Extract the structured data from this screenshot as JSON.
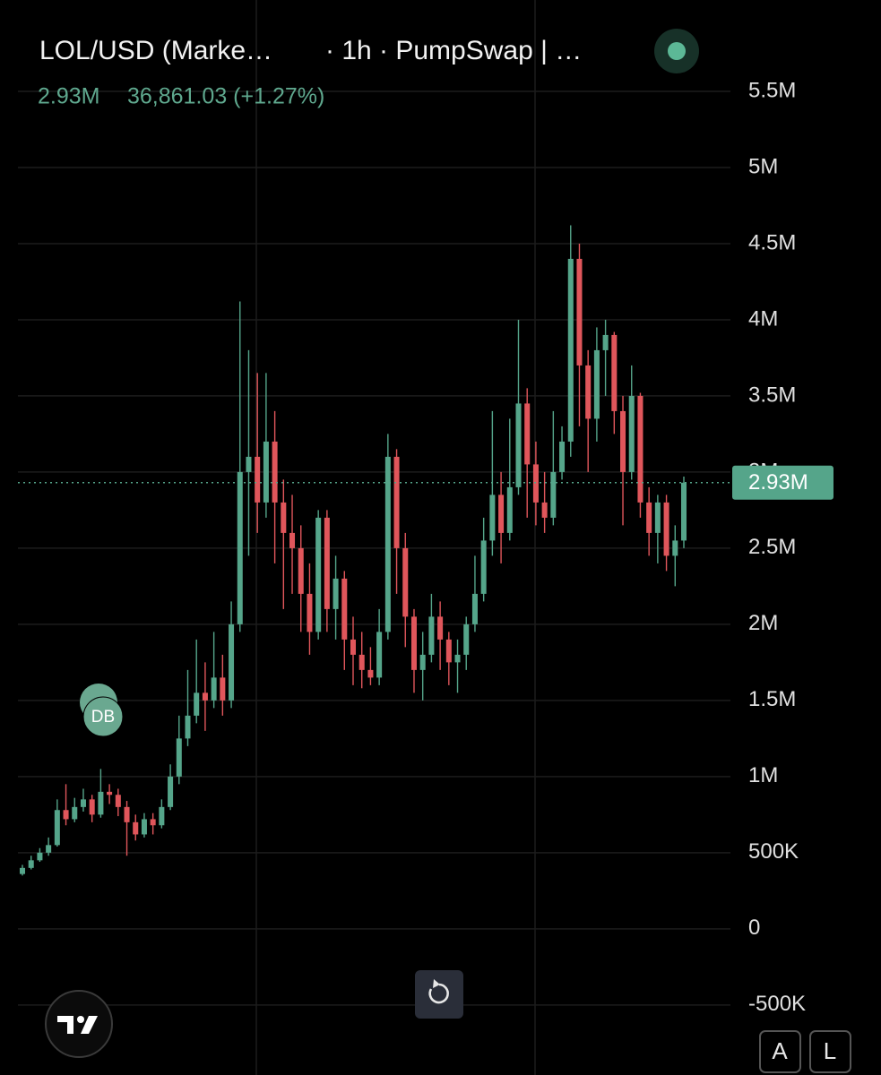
{
  "header": {
    "title": "LOL/USD (Marke…",
    "meta": "· 1h · PumpSwap | …",
    "last_value": "2.93M",
    "change": "36,861.03 (+1.27%)"
  },
  "marker": "DB",
  "controls": {
    "auto": "A",
    "log": "L"
  },
  "chart_data": {
    "type": "candlestick",
    "up_color": "#55a58a",
    "down_color": "#e0565b",
    "grid": true,
    "ylim": [
      -960000,
      6100000
    ],
    "yticks": [
      {
        "value": 5500000,
        "label": "5.5M"
      },
      {
        "value": 5000000,
        "label": "5M"
      },
      {
        "value": 4500000,
        "label": "4.5M"
      },
      {
        "value": 4000000,
        "label": "4M"
      },
      {
        "value": 3500000,
        "label": "3.5M"
      },
      {
        "value": 3000000,
        "label": "3M"
      },
      {
        "value": 2500000,
        "label": "2.5M"
      },
      {
        "value": 2000000,
        "label": "2M"
      },
      {
        "value": 1500000,
        "label": "1.5M"
      },
      {
        "value": 1000000,
        "label": "1M"
      },
      {
        "value": 500000,
        "label": "500K"
      },
      0,
      {
        "value": -500000,
        "label": "-500K"
      }
    ],
    "last_price": {
      "value": 2930000,
      "label": "2.93M"
    },
    "open": [
      360000,
      400000,
      450000,
      500000,
      550000,
      780000,
      720000,
      800000,
      850000,
      750000,
      900000,
      880000,
      800000,
      700000,
      620000,
      720000,
      680000,
      800000,
      1000000,
      1250000,
      1400000,
      1550000,
      1500000,
      1650000,
      1500000,
      2000000,
      3000000,
      3100000,
      2800000,
      3200000,
      2800000,
      2600000,
      2500000,
      2200000,
      1950000,
      2700000,
      2100000,
      2300000,
      1900000,
      1800000,
      1700000,
      1650000,
      1950000,
      3100000,
      2500000,
      2050000,
      1700000,
      1800000,
      2050000,
      1900000,
      1750000,
      1800000,
      2000000,
      2200000,
      2550000,
      2850000,
      2600000,
      2900000,
      3450000,
      3050000,
      2800000,
      2700000,
      3000000,
      3200000,
      4400000,
      3700000,
      3350000,
      3800000,
      3900000,
      3400000,
      3000000,
      3500000,
      2800000,
      2600000,
      2800000,
      2450000,
      2550000
    ],
    "high": [
      420000,
      480000,
      530000,
      600000,
      850000,
      950000,
      860000,
      920000,
      880000,
      1050000,
      950000,
      920000,
      840000,
      750000,
      760000,
      760000,
      850000,
      1080000,
      1400000,
      1700000,
      1900000,
      1750000,
      1950000,
      1800000,
      2150000,
      4120000,
      3800000,
      3650000,
      3650000,
      3400000,
      2950000,
      2850000,
      2650000,
      2400000,
      2750000,
      2750000,
      2450000,
      2350000,
      2050000,
      1950000,
      1850000,
      2100000,
      3250000,
      3150000,
      2600000,
      2100000,
      1950000,
      2200000,
      2150000,
      1950000,
      1900000,
      2050000,
      2450000,
      2700000,
      3400000,
      3000000,
      3350000,
      4000000,
      3550000,
      3200000,
      3000000,
      3400000,
      3300000,
      4620000,
      4500000,
      3800000,
      3950000,
      4000000,
      3920000,
      3500000,
      3700000,
      3520000,
      2900000,
      2850000,
      2850000,
      2650000,
      2970000
    ],
    "low": [
      350000,
      390000,
      440000,
      480000,
      540000,
      680000,
      700000,
      770000,
      700000,
      730000,
      820000,
      740000,
      480000,
      580000,
      600000,
      620000,
      660000,
      780000,
      950000,
      1200000,
      1350000,
      1300000,
      1450000,
      1400000,
      1450000,
      1950000,
      2450000,
      2600000,
      2700000,
      2400000,
      2100000,
      2200000,
      1950000,
      1800000,
      1900000,
      1950000,
      1900000,
      1700000,
      1600000,
      1580000,
      1600000,
      1600000,
      1900000,
      2200000,
      1850000,
      1550000,
      1500000,
      1750000,
      1700000,
      1600000,
      1550000,
      1700000,
      1950000,
      2150000,
      2450000,
      2400000,
      2550000,
      2850000,
      2700000,
      2650000,
      2600000,
      2650000,
      2950000,
      3100000,
      3300000,
      3000000,
      3200000,
      3500000,
      3250000,
      2650000,
      2950000,
      2700000,
      2450000,
      2400000,
      2350000,
      2250000,
      2500000
    ],
    "close": [
      400000,
      450000,
      500000,
      550000,
      780000,
      720000,
      800000,
      850000,
      750000,
      900000,
      880000,
      800000,
      700000,
      620000,
      720000,
      680000,
      800000,
      1000000,
      1250000,
      1400000,
      1550000,
      1500000,
      1650000,
      1500000,
      2000000,
      3000000,
      3100000,
      2800000,
      3200000,
      2800000,
      2600000,
      2500000,
      2200000,
      1950000,
      2700000,
      2100000,
      2300000,
      1900000,
      1800000,
      1700000,
      1650000,
      1950000,
      3100000,
      2500000,
      2050000,
      1700000,
      1800000,
      2050000,
      1900000,
      1750000,
      1800000,
      2000000,
      2200000,
      2550000,
      2850000,
      2600000,
      2900000,
      3450000,
      3050000,
      2800000,
      2700000,
      3000000,
      3200000,
      4400000,
      3700000,
      3350000,
      3800000,
      3900000,
      3400000,
      3000000,
      3500000,
      2800000,
      2600000,
      2800000,
      2450000,
      2550000,
      2930000
    ]
  }
}
